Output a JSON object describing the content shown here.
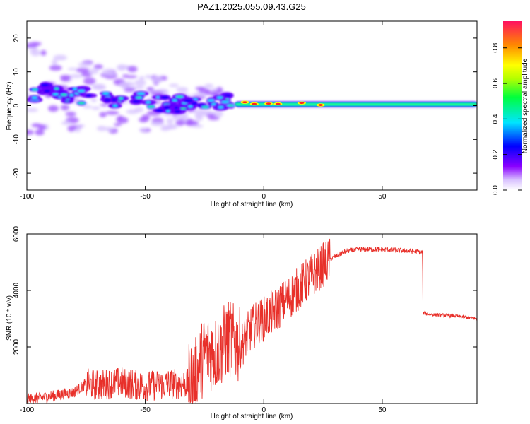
{
  "title": "PAZ1.2025.055.09.43.G25",
  "chart_data": [
    {
      "type": "heatmap",
      "xlabel": "Height of straight line (km)",
      "ylabel": "Frequency (Hz)",
      "xlim": [
        -100,
        90
      ],
      "ylim": [
        -25,
        25
      ],
      "xticks": [
        -100,
        -50,
        0,
        50
      ],
      "yticks": [
        -20,
        -10,
        0,
        10,
        20
      ],
      "grid": false,
      "ridge": {
        "x": [
          -100,
          -90,
          -80,
          -70,
          -60,
          -50,
          -40,
          -30,
          -20,
          -10,
          0,
          10,
          20,
          30,
          40,
          50,
          60,
          70,
          80,
          90
        ],
        "y": [
          4,
          4,
          3,
          2,
          2,
          1.5,
          0.5,
          0,
          0.5,
          1,
          0.5,
          0.5,
          0.3,
          0.2,
          0.2,
          0.2,
          0.3,
          0.4,
          0.5,
          0.7
        ]
      },
      "colorbar": {
        "label": "Normalized spectral amplitude",
        "range": [
          0,
          0.95
        ],
        "ticks": [
          "0.0",
          "0.2",
          "0.4",
          "0.6",
          "0.8"
        ]
      }
    },
    {
      "type": "line",
      "xlabel": "Height of straight line (km)",
      "ylabel": "SNR (10 * v/v)",
      "xlim": [
        -100,
        90
      ],
      "ylim": [
        0,
        6000
      ],
      "xticks": [
        -100,
        -50,
        0,
        50
      ],
      "yticks": [
        2000,
        4000,
        6000
      ],
      "grid": false,
      "color": "#e8302a",
      "series": [
        {
          "x": [
            -100,
            -90,
            -80,
            -75,
            -70,
            -60,
            -50,
            -40,
            -30,
            -25,
            -20,
            -15,
            -10,
            -5,
            0,
            5,
            10,
            15,
            20,
            25,
            30,
            35,
            40,
            50,
            60,
            67,
            67.2,
            70,
            80,
            90
          ],
          "y": [
            150,
            250,
            400,
            700,
            650,
            750,
            600,
            700,
            700,
            1800,
            1800,
            2300,
            2000,
            2700,
            3000,
            3300,
            3700,
            4100,
            4500,
            4900,
            5200,
            5400,
            5450,
            5450,
            5400,
            5350,
            3200,
            3150,
            3100,
            3000
          ]
        }
      ]
    }
  ]
}
